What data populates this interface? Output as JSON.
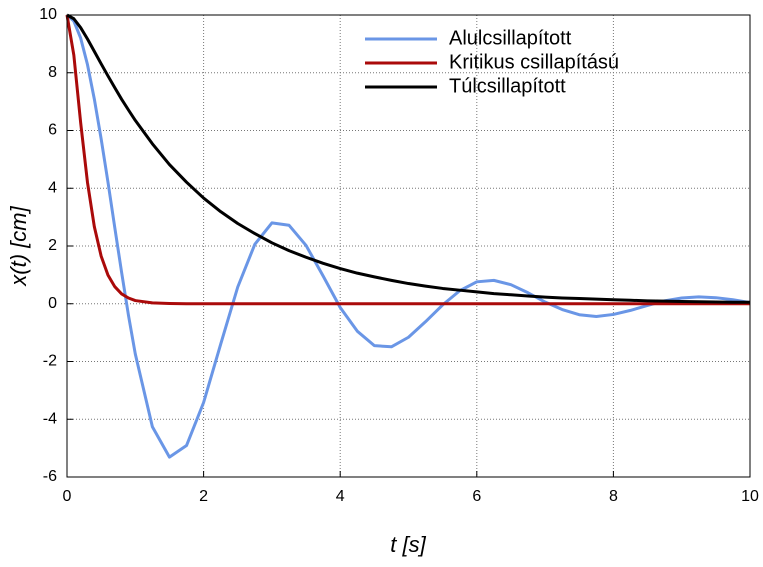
{
  "chart_data": {
    "type": "line",
    "xlabel": "t [s]",
    "ylabel": "x(t) [cm]",
    "x": [
      0,
      0.1,
      0.2,
      0.3,
      0.4,
      0.5,
      0.6,
      0.7,
      0.8,
      0.9,
      1.0,
      1.25,
      1.5,
      1.75,
      2,
      2.25,
      2.5,
      2.75,
      3,
      3.25,
      3.5,
      3.75,
      4,
      4.25,
      4.5,
      4.75,
      5,
      5.25,
      5.5,
      5.75,
      6,
      6.25,
      6.5,
      6.75,
      7,
      7.25,
      7.5,
      7.75,
      8,
      8.25,
      8.5,
      8.75,
      9,
      9.25,
      9.5,
      9.75,
      10
    ],
    "series": [
      {
        "name": "Alulcsillapított",
        "color": "#6a96e6",
        "values": [
          10,
          9.79,
          9.2,
          8.28,
          7.09,
          5.71,
          4.21,
          2.63,
          1.08,
          -0.4,
          -1.74,
          -4.26,
          -5.31,
          -4.91,
          -3.42,
          -1.4,
          0.58,
          2.06,
          2.8,
          2.72,
          2.02,
          0.96,
          -0.13,
          -0.95,
          -1.45,
          -1.49,
          -1.16,
          -0.62,
          -0.04,
          0.45,
          0.76,
          0.81,
          0.66,
          0.38,
          0.06,
          -0.2,
          -0.38,
          -0.44,
          -0.37,
          -0.23,
          -0.06,
          0.1,
          0.2,
          0.24,
          0.21,
          0.14,
          0.04
        ]
      },
      {
        "name": "Kritikus csillapítású",
        "color": "#aa0a0a",
        "values": [
          10,
          8.61,
          6.27,
          4.2,
          2.67,
          1.65,
          0.99,
          0.59,
          0.34,
          0.2,
          0.11,
          0.03,
          0.01,
          0,
          0,
          0,
          0,
          0,
          0,
          0,
          0,
          0,
          0,
          0,
          0,
          0,
          0,
          0,
          0,
          0,
          0,
          0,
          0,
          0,
          0,
          0,
          0,
          0,
          0,
          0,
          0,
          0,
          0,
          0,
          0,
          0,
          0
        ]
      },
      {
        "name": "Túlcsillapított",
        "color": "#000000",
        "values": [
          10,
          9.87,
          9.56,
          9.17,
          8.74,
          8.31,
          7.89,
          7.48,
          7.08,
          6.71,
          6.35,
          5.54,
          4.82,
          4.21,
          3.66,
          3.19,
          2.78,
          2.43,
          2.11,
          1.84,
          1.61,
          1.4,
          1.22,
          1.06,
          0.93,
          0.81,
          0.7,
          0.61,
          0.53,
          0.47,
          0.41,
          0.35,
          0.31,
          0.27,
          0.23,
          0.2,
          0.18,
          0.16,
          0.14,
          0.12,
          0.1,
          0.09,
          0.08,
          0.07,
          0.06,
          0.05,
          0.05
        ]
      }
    ],
    "xlim": [
      0,
      10
    ],
    "xticks": [
      0,
      2,
      4,
      6,
      8,
      10
    ],
    "ylim": [
      -6,
      10
    ],
    "yticks": [
      -6,
      -4,
      -2,
      0,
      2,
      4,
      6,
      8,
      10
    ],
    "grid": true,
    "legend": "top-right"
  }
}
